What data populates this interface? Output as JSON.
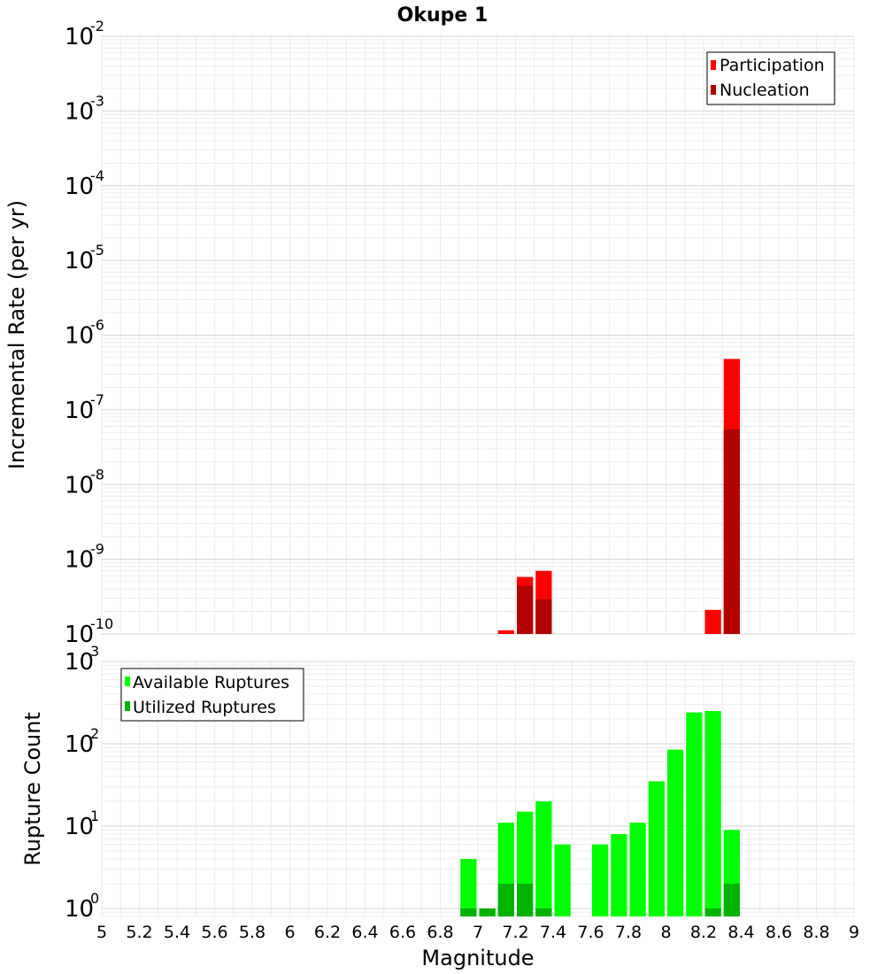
{
  "chart_data": [
    {
      "type": "bar",
      "title": "Okupe 1",
      "ylabel": "Incremental Rate (per yr)",
      "xlabel": "",
      "xlim": [
        5,
        9
      ],
      "ylim": [
        1e-10,
        0.01
      ],
      "yscale": "log",
      "grid": true,
      "legend_position": "top-right",
      "bar_width": 0.1,
      "series": [
        {
          "name": "Participation",
          "color": "#ff0000",
          "x": [
            7.15,
            7.25,
            7.35,
            8.25,
            8.35
          ],
          "values": [
            1.12e-10,
            5.8e-10,
            7e-10,
            2.1e-10,
            4.8e-07
          ]
        },
        {
          "name": "Nucleation",
          "color": "#b30000",
          "x": [
            7.25,
            7.35,
            8.35
          ],
          "values": [
            4.4e-10,
            2.9e-10,
            5.5e-08
          ]
        }
      ]
    },
    {
      "type": "bar",
      "title": "",
      "ylabel": "Rupture Count",
      "xlabel": "Magnitude",
      "xlim": [
        5,
        9
      ],
      "ylim": [
        0.8,
        1000
      ],
      "yscale": "log",
      "grid": true,
      "legend_position": "top-left",
      "bar_width": 0.1,
      "x_ticks": [
        "5",
        "5.2",
        "5.4",
        "5.6",
        "5.8",
        "6",
        "6.2",
        "6.4",
        "6.6",
        "6.8",
        "7",
        "7.2",
        "7.4",
        "7.6",
        "7.8",
        "8",
        "8.2",
        "8.4",
        "8.6",
        "8.8",
        "9"
      ],
      "series": [
        {
          "name": "Available Ruptures",
          "color": "#00ff00",
          "x": [
            6.95,
            7.05,
            7.15,
            7.25,
            7.35,
            7.45,
            7.65,
            7.75,
            7.85,
            7.95,
            8.05,
            8.15,
            8.25,
            8.35
          ],
          "values": [
            4,
            1,
            11,
            15,
            20,
            6,
            6,
            8,
            11,
            35,
            85,
            240,
            250,
            9
          ]
        },
        {
          "name": "Utilized Ruptures",
          "color": "#00b300",
          "x": [
            6.95,
            7.05,
            7.15,
            7.25,
            7.35,
            8.25,
            8.35
          ],
          "values": [
            1,
            1,
            2,
            2,
            1,
            1,
            2
          ]
        }
      ]
    }
  ]
}
